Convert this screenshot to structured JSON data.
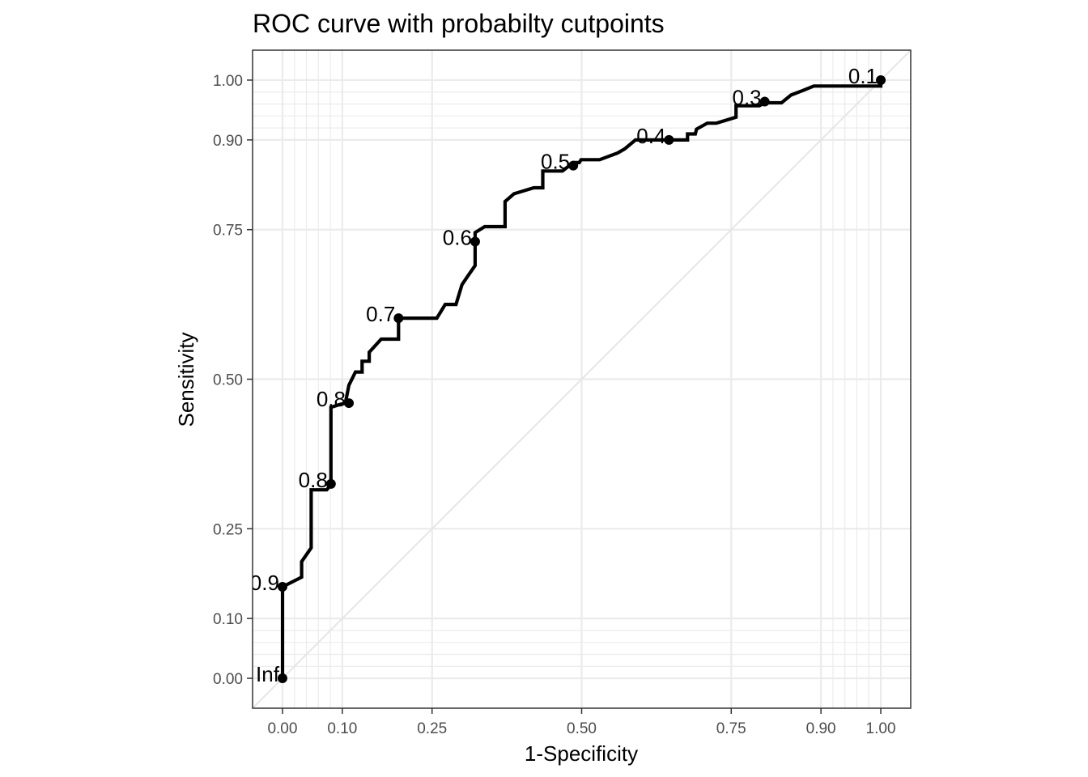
{
  "chart_data": {
    "type": "line",
    "title": "ROC curve with probabilty cutpoints",
    "xlabel": "1-Specificity",
    "ylabel": "Sensitivity",
    "xlim": [
      -0.05,
      1.05
    ],
    "ylim": [
      -0.05,
      1.05
    ],
    "x_ticks": [
      0.0,
      0.1,
      0.25,
      0.5,
      0.75,
      0.9,
      1.0
    ],
    "x_tick_labels": [
      "0.00",
      "0.10",
      "0.25",
      "0.50",
      "0.75",
      "0.90",
      "1.00"
    ],
    "y_ticks": [
      0.0,
      0.1,
      0.25,
      0.5,
      0.75,
      0.9,
      1.0
    ],
    "y_tick_labels": [
      "0.00",
      "0.10",
      "0.25",
      "0.50",
      "0.75",
      "0.90",
      "1.00"
    ],
    "minor_grid": [
      0.02,
      0.04,
      0.06,
      0.08,
      0.92,
      0.94,
      0.96,
      0.98
    ],
    "grid": true,
    "reference_line": [
      [
        0,
        0
      ],
      [
        1,
        1
      ]
    ],
    "curve": {
      "x": [
        0.0,
        0.0,
        0.0,
        0.032,
        0.032,
        0.048,
        0.048,
        0.074,
        0.078,
        0.081,
        0.081,
        0.097,
        0.105,
        0.111,
        0.111,
        0.122,
        0.133,
        0.133,
        0.145,
        0.145,
        0.165,
        0.194,
        0.194,
        0.258,
        0.272,
        0.29,
        0.3,
        0.308,
        0.322,
        0.322,
        0.322,
        0.338,
        0.372,
        0.372,
        0.387,
        0.42,
        0.435,
        0.435,
        0.468,
        0.486,
        0.496,
        0.499,
        0.499,
        0.53,
        0.56,
        0.56,
        0.572,
        0.59,
        0.646,
        0.677,
        0.677,
        0.69,
        0.692,
        0.71,
        0.725,
        0.758,
        0.758,
        0.797,
        0.806,
        0.834,
        0.85,
        0.85,
        0.868,
        0.888,
        1.0,
        1.0
      ],
      "y": [
        0.0,
        0.0,
        0.153,
        0.169,
        0.195,
        0.218,
        0.315,
        0.315,
        0.32,
        0.325,
        0.453,
        0.458,
        0.46,
        0.49,
        0.49,
        0.512,
        0.512,
        0.53,
        0.53,
        0.545,
        0.567,
        0.567,
        0.602,
        0.602,
        0.625,
        0.625,
        0.658,
        0.67,
        0.69,
        0.715,
        0.745,
        0.755,
        0.755,
        0.797,
        0.81,
        0.82,
        0.82,
        0.848,
        0.848,
        0.862,
        0.862,
        0.867,
        0.867,
        0.867,
        0.878,
        0.878,
        0.885,
        0.9,
        0.9,
        0.9,
        0.91,
        0.91,
        0.918,
        0.928,
        0.928,
        0.938,
        0.957,
        0.957,
        0.962,
        0.962,
        0.975,
        0.975,
        0.982,
        0.99,
        0.99,
        1.0
      ]
    },
    "cutpoints": [
      {
        "label": "Inf",
        "x": 0.0,
        "y": 0.0
      },
      {
        "label": "0.9",
        "x": 0.0,
        "y": 0.153
      },
      {
        "label": "0.8",
        "x": 0.081,
        "y": 0.325
      },
      {
        "label": "0.8",
        "x": 0.111,
        "y": 0.46
      },
      {
        "label": "0.7",
        "x": 0.194,
        "y": 0.602
      },
      {
        "label": "0.6",
        "x": 0.322,
        "y": 0.73
      },
      {
        "label": "0.5",
        "x": 0.486,
        "y": 0.857
      },
      {
        "label": "0.4",
        "x": 0.646,
        "y": 0.9
      },
      {
        "label": "0.3",
        "x": 0.806,
        "y": 0.964
      },
      {
        "label": "0.1",
        "x": 1.0,
        "y": 1.0
      }
    ],
    "colors": {
      "curve": "#000000",
      "grid": "#ebebeb",
      "reference": "#e6e6e6",
      "panel_border": "#333333",
      "tick_label": "#4d4d4d"
    }
  }
}
